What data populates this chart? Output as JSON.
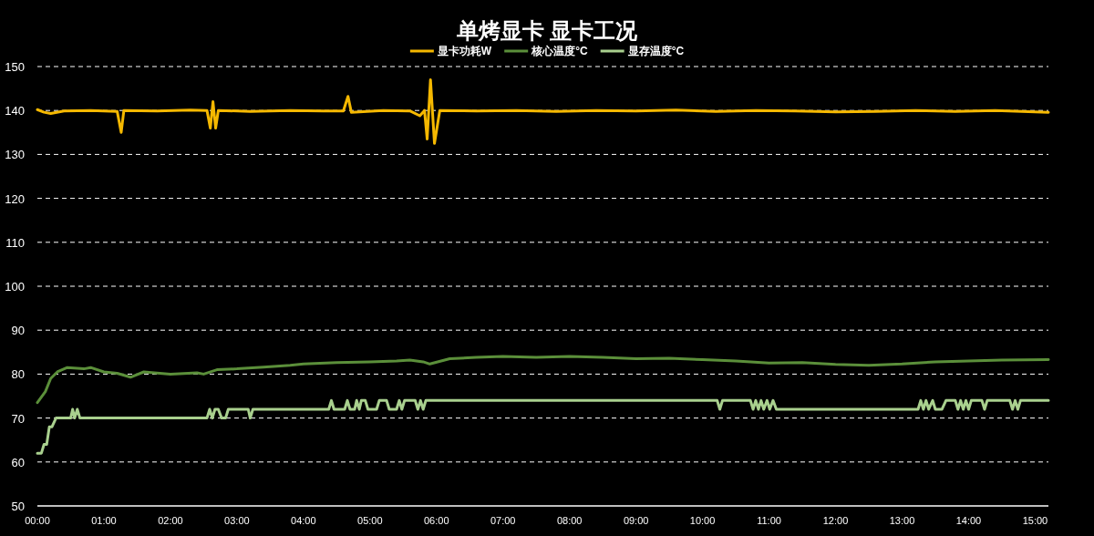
{
  "chart_data": {
    "type": "line",
    "title": "单烤显卡 显卡工况",
    "legend": "top",
    "grid": "y",
    "line_style": "solid",
    "marker": "none",
    "xlim": [
      0,
      15.2
    ],
    "ylim": [
      50,
      150
    ],
    "xticks": [
      {
        "value": 0,
        "label": "00:00"
      },
      {
        "value": 1,
        "label": "01:00"
      },
      {
        "value": 2,
        "label": "02:00"
      },
      {
        "value": 3,
        "label": "03:00"
      },
      {
        "value": 4,
        "label": "04:00"
      },
      {
        "value": 5,
        "label": "05:00"
      },
      {
        "value": 6,
        "label": "06:00"
      },
      {
        "value": 7,
        "label": "07:00"
      },
      {
        "value": 8,
        "label": "08:00"
      },
      {
        "value": 9,
        "label": "09:00"
      },
      {
        "value": 10,
        "label": "10:00"
      },
      {
        "value": 11,
        "label": "11:00"
      },
      {
        "value": 12,
        "label": "12:00"
      },
      {
        "value": 13,
        "label": "13:00"
      },
      {
        "value": 14,
        "label": "14:00"
      },
      {
        "value": 15,
        "label": "15:00"
      }
    ],
    "yticks": [
      50,
      60,
      70,
      80,
      90,
      100,
      110,
      120,
      130,
      140,
      150
    ],
    "series": [
      {
        "name": "显卡功耗W",
        "color": "#f5b800",
        "x": [
          0,
          0.1,
          0.2,
          0.4,
          0.8,
          1.2,
          1.26,
          1.3,
          1.8,
          2.3,
          2.55,
          2.6,
          2.64,
          2.68,
          2.72,
          3.2,
          3.8,
          4.3,
          4.6,
          4.67,
          4.72,
          5.2,
          5.6,
          5.75,
          5.82,
          5.86,
          5.91,
          5.97,
          6.05,
          6.6,
          7.2,
          7.8,
          8.4,
          9.0,
          9.6,
          10.2,
          10.8,
          11.4,
          12,
          12.6,
          13.2,
          13.8,
          14.4,
          15.2
        ],
        "values": [
          140.2,
          139.6,
          139.3,
          139.9,
          140,
          139.8,
          135,
          140,
          139.9,
          140.1,
          140,
          136,
          142,
          136,
          140,
          139.8,
          140,
          139.9,
          139.9,
          143.2,
          139.6,
          140,
          139.9,
          138.8,
          140,
          133.5,
          147,
          132.5,
          140,
          139.9,
          140,
          139.8,
          140,
          139.9,
          140.1,
          139.8,
          140,
          139.9,
          139.7,
          139.8,
          140,
          139.8,
          140,
          139.6
        ]
      },
      {
        "name": "核心温度°C",
        "color": "#5b8f3a",
        "x": [
          0,
          0.12,
          0.2,
          0.3,
          0.45,
          0.7,
          0.8,
          1.0,
          1.2,
          1.4,
          1.6,
          2.0,
          2.4,
          2.5,
          2.7,
          3.0,
          3.4,
          3.8,
          4.0,
          4.5,
          5.0,
          5.4,
          5.6,
          5.8,
          5.9,
          6.2,
          6.6,
          7.0,
          7.5,
          8.0,
          8.5,
          9.0,
          9.5,
          10.0,
          10.5,
          11.0,
          11.5,
          12.0,
          12.5,
          13.0,
          13.5,
          14.0,
          14.5,
          15.2
        ],
        "values": [
          73.5,
          76,
          79,
          80.5,
          81.5,
          81.2,
          81.5,
          80.5,
          80.2,
          79.3,
          80.5,
          80,
          80.3,
          80,
          81,
          81.2,
          81.6,
          82,
          82.3,
          82.6,
          82.8,
          83,
          83.2,
          82.8,
          82.3,
          83.5,
          83.8,
          84,
          83.8,
          84,
          83.8,
          83.5,
          83.6,
          83.3,
          83,
          82.5,
          82.6,
          82.2,
          82,
          82.3,
          82.8,
          83,
          83.2,
          83.3
        ]
      },
      {
        "name": "显存温度°C",
        "color": "#a9d08e",
        "x": [
          0,
          0.06,
          0.1,
          0.14,
          0.18,
          0.22,
          0.28,
          0.5,
          0.53,
          0.56,
          0.6,
          0.64,
          2.55,
          2.59,
          2.63,
          2.67,
          2.72,
          2.77,
          2.83,
          2.87,
          3.17,
          3.2,
          3.24,
          4.38,
          4.42,
          4.46,
          4.62,
          4.66,
          4.7,
          4.77,
          4.8,
          4.84,
          4.87,
          4.93,
          4.97,
          5.1,
          5.14,
          5.25,
          5.29,
          5.4,
          5.44,
          5.48,
          5.52,
          5.68,
          5.72,
          5.76,
          5.8,
          5.84,
          10.22,
          10.26,
          10.3,
          10.72,
          10.76,
          10.8,
          10.84,
          10.88,
          10.92,
          10.97,
          11.01,
          11.06,
          11.11,
          13.24,
          13.28,
          13.32,
          13.36,
          13.4,
          13.46,
          13.5,
          13.6,
          13.66,
          13.8,
          13.84,
          13.88,
          13.92,
          13.96,
          14.0,
          14.04,
          14.2,
          14.24,
          14.28,
          14.62,
          14.66,
          14.7,
          14.74,
          14.78,
          15.2
        ],
        "values": [
          62,
          62,
          64,
          64,
          68,
          68,
          70,
          70,
          72,
          70,
          72,
          70,
          70,
          72,
          70,
          72,
          72,
          70,
          70,
          72,
          72,
          70,
          72,
          72,
          74,
          72,
          72,
          74,
          72,
          72,
          74,
          72,
          74,
          74,
          72,
          72,
          74,
          74,
          72,
          72,
          74,
          72,
          74,
          74,
          72,
          74,
          72,
          74,
          74,
          72,
          74,
          74,
          72,
          74,
          72,
          74,
          72,
          74,
          72,
          74,
          72,
          72,
          74,
          72,
          74,
          72,
          74,
          72,
          72,
          74,
          74,
          72,
          74,
          72,
          74,
          72,
          74,
          74,
          72,
          74,
          74,
          72,
          74,
          72,
          74,
          74
        ]
      }
    ]
  }
}
